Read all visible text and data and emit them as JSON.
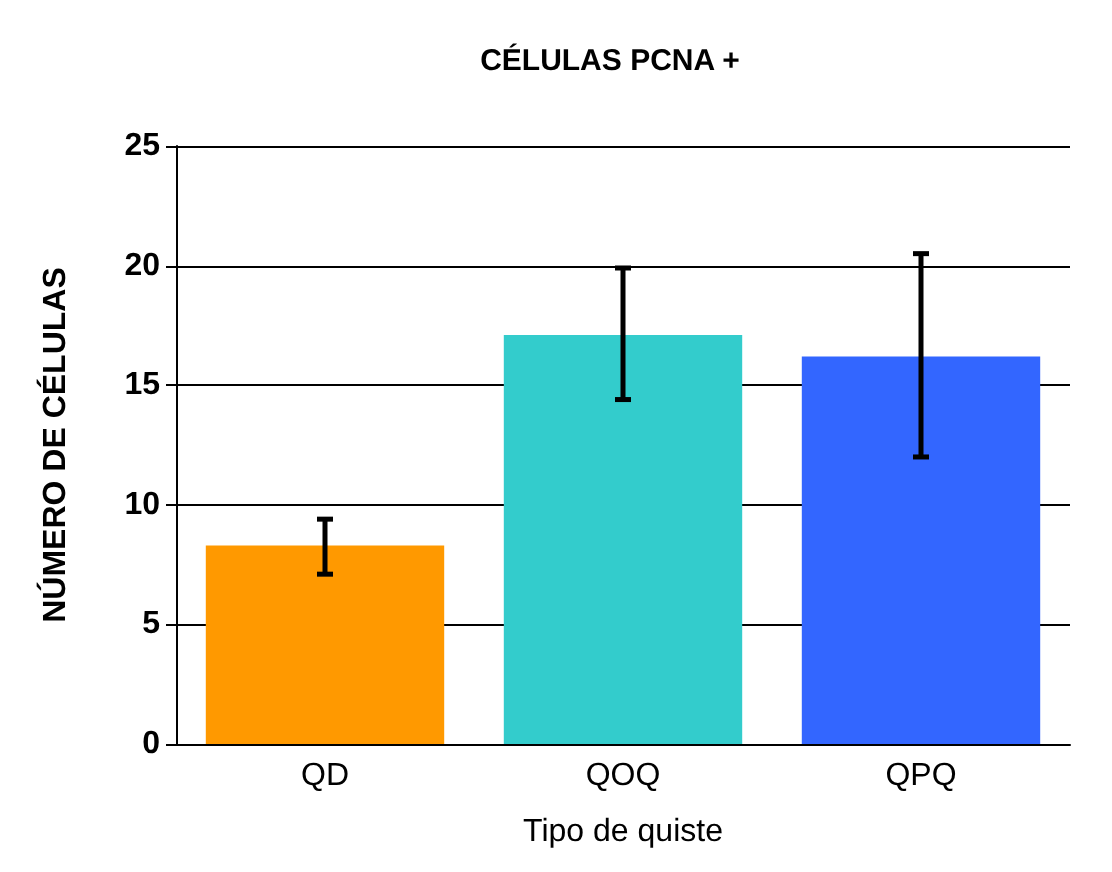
{
  "chart_data": {
    "type": "bar",
    "title": "CÉLULAS PCNA +",
    "xlabel": "Tipo de quiste",
    "ylabel": "NÚMERO DE CÉLULAS",
    "categories": [
      "QD",
      "QOQ",
      "QPQ"
    ],
    "values": [
      8.3,
      17.1,
      16.2
    ],
    "colors": [
      "#ff9900",
      "#33cccc",
      "#3366ff"
    ],
    "errors": [
      [
        7.1,
        9.4
      ],
      [
        14.4,
        19.9
      ],
      [
        12.0,
        20.5
      ]
    ],
    "ylim": [
      0,
      25
    ],
    "yticks": [
      0,
      5,
      10,
      15,
      20,
      25
    ],
    "grid": "y"
  }
}
